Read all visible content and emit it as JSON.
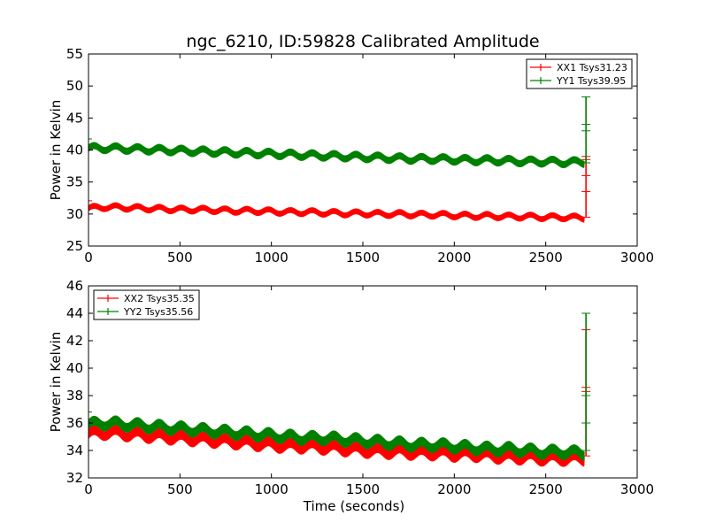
{
  "figure": {
    "title": "ngc_6210, ID:59828 Calibrated Amplitude"
  },
  "chart_data": [
    {
      "type": "line",
      "title": "ngc_6210, ID:59828 Calibrated Amplitude",
      "xlabel": "",
      "ylabel": "Power in Kelvin",
      "xlim": [
        0,
        3000
      ],
      "ylim": [
        25,
        55
      ],
      "xticks": [
        0,
        500,
        1000,
        1500,
        2000,
        2500,
        3000
      ],
      "yticks": [
        25,
        30,
        35,
        40,
        45,
        50,
        55
      ],
      "grid": false,
      "legend": "top-right",
      "series": [
        {
          "name": "XX1 Tsys31.23",
          "color": "#ff0000",
          "x": [
            0,
            100,
            200,
            300,
            400,
            500,
            600,
            700,
            800,
            900,
            1000,
            1100,
            1200,
            1300,
            1400,
            1500,
            1600,
            1700,
            1800,
            1900,
            2000,
            2100,
            2200,
            2300,
            2400,
            2500,
            2600,
            2710
          ],
          "y": [
            30.9,
            31.1,
            31.0,
            30.9,
            30.8,
            30.7,
            30.7,
            30.6,
            30.5,
            30.5,
            30.4,
            30.3,
            30.3,
            30.2,
            30.1,
            30.1,
            30.0,
            30.0,
            29.9,
            29.9,
            29.8,
            29.7,
            29.7,
            29.6,
            29.6,
            29.5,
            29.5,
            29.4
          ],
          "spread": 0.9,
          "spike": {
            "x": 2720,
            "values": [
              29.5,
              33.5,
              36.0,
              38.5,
              39.0
            ]
          }
        },
        {
          "name": "YY1 Tsys39.95",
          "color": "#008000",
          "x": [
            0,
            100,
            200,
            300,
            400,
            500,
            600,
            700,
            800,
            900,
            1000,
            1100,
            1200,
            1300,
            1400,
            1500,
            1600,
            1700,
            1800,
            1900,
            2000,
            2100,
            2200,
            2300,
            2400,
            2500,
            2600,
            2710
          ],
          "y": [
            40.3,
            40.3,
            40.2,
            40.1,
            40.0,
            39.9,
            39.8,
            39.7,
            39.6,
            39.5,
            39.4,
            39.3,
            39.2,
            39.1,
            39.0,
            38.9,
            38.8,
            38.7,
            38.6,
            38.6,
            38.5,
            38.4,
            38.4,
            38.3,
            38.2,
            38.2,
            38.1,
            38.1
          ],
          "spread": 1.1,
          "spike": {
            "x": 2720,
            "values": [
              38.0,
              43.0,
              44.0,
              48.3
            ]
          }
        }
      ]
    },
    {
      "type": "line",
      "xlabel": "Time (seconds)",
      "ylabel": "Power in Kelvin",
      "xlim": [
        0,
        3000
      ],
      "ylim": [
        32,
        46
      ],
      "xticks": [
        0,
        500,
        1000,
        1500,
        2000,
        2500,
        3000
      ],
      "yticks": [
        32,
        34,
        36,
        38,
        40,
        42,
        44,
        46
      ],
      "grid": false,
      "legend": "top-left",
      "series": [
        {
          "name": "XX2 Tsys35.35",
          "color": "#ff0000",
          "x": [
            0,
            100,
            200,
            300,
            400,
            500,
            600,
            700,
            800,
            900,
            1000,
            1100,
            1200,
            1300,
            1400,
            1500,
            1600,
            1700,
            1800,
            1900,
            2000,
            2100,
            2200,
            2300,
            2400,
            2500,
            2600,
            2710
          ],
          "y": [
            35.2,
            35.3,
            35.2,
            35.1,
            35.0,
            34.9,
            34.8,
            34.7,
            34.6,
            34.5,
            34.4,
            34.3,
            34.3,
            34.2,
            34.1,
            34.0,
            33.9,
            33.9,
            33.8,
            33.8,
            33.7,
            33.7,
            33.6,
            33.5,
            33.5,
            33.4,
            33.4,
            33.4
          ],
          "spread": 0.7,
          "spike": {
            "x": 2720,
            "values": [
              33.6,
              38.3,
              38.6,
              42.8
            ]
          }
        },
        {
          "name": "YY2 Tsys35.56",
          "color": "#008000",
          "x": [
            0,
            100,
            200,
            300,
            400,
            500,
            600,
            700,
            800,
            900,
            1000,
            1100,
            1200,
            1300,
            1400,
            1500,
            1600,
            1700,
            1800,
            1900,
            2000,
            2100,
            2200,
            2300,
            2400,
            2500,
            2600,
            2710
          ],
          "y": [
            35.9,
            36.0,
            35.9,
            35.8,
            35.7,
            35.6,
            35.5,
            35.4,
            35.3,
            35.2,
            35.1,
            35.0,
            34.9,
            34.9,
            34.8,
            34.7,
            34.6,
            34.5,
            34.4,
            34.4,
            34.3,
            34.2,
            34.1,
            34.1,
            34.0,
            33.9,
            33.9,
            33.8
          ],
          "spread": 0.7,
          "spike": {
            "x": 2720,
            "values": [
              34.0,
              36.0,
              38.0,
              44.0
            ]
          }
        }
      ]
    }
  ]
}
